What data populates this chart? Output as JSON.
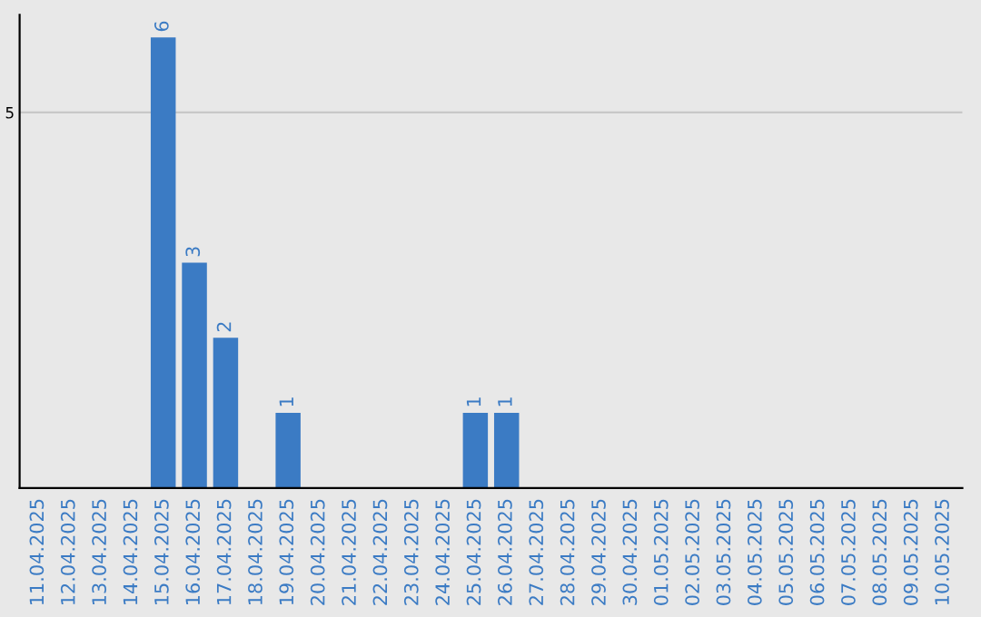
{
  "chart_data": {
    "type": "bar",
    "categories": [
      "11.04.2025",
      "12.04.2025",
      "13.04.2025",
      "14.04.2025",
      "15.04.2025",
      "16.04.2025",
      "17.04.2025",
      "18.04.2025",
      "19.04.2025",
      "20.04.2025",
      "21.04.2025",
      "22.04.2025",
      "23.04.2025",
      "24.04.2025",
      "25.04.2025",
      "26.04.2025",
      "27.04.2025",
      "28.04.2025",
      "29.04.2025",
      "30.04.2025",
      "01.05.2025",
      "02.05.2025",
      "03.05.2025",
      "04.05.2025",
      "05.05.2025",
      "06.05.2025",
      "07.05.2025",
      "08.05.2025",
      "09.05.2025",
      "10.05.2025"
    ],
    "values": [
      0,
      0,
      0,
      0,
      6,
      3,
      2,
      0,
      1,
      0,
      0,
      0,
      0,
      0,
      1,
      1,
      0,
      0,
      0,
      0,
      0,
      0,
      0,
      0,
      0,
      0,
      0,
      0,
      0,
      0
    ],
    "value_labels": [
      null,
      null,
      null,
      null,
      "6",
      "3",
      "2",
      null,
      "1",
      null,
      null,
      null,
      null,
      null,
      "1",
      "1",
      null,
      null,
      null,
      null,
      null,
      null,
      null,
      null,
      null,
      null,
      null,
      null,
      null,
      null
    ],
    "color": "#3b7bc4",
    "ylim": [
      0,
      6.3
    ],
    "yticks": [
      5
    ],
    "grid": "y"
  }
}
